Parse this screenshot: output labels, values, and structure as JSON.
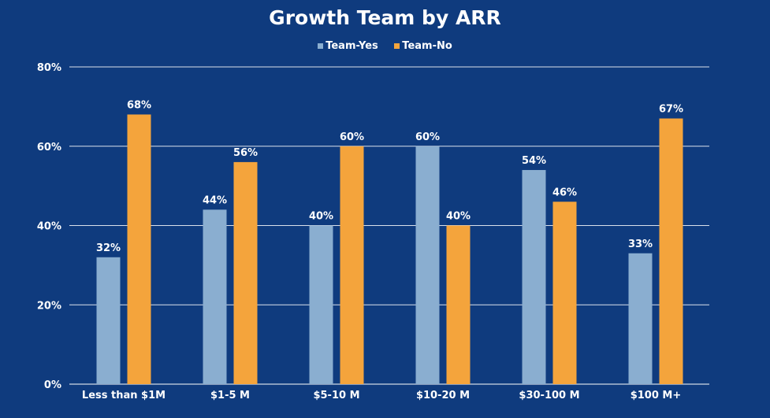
{
  "chart_data": {
    "type": "bar",
    "title": "Growth Team by ARR",
    "categories": [
      "Less than $1M",
      "$1-5 M",
      "$5-10 M",
      "$10-20 M",
      "$30-100 M",
      "$100 M+"
    ],
    "series": [
      {
        "name": "Team-Yes",
        "values": [
          32,
          44,
          40,
          60,
          54,
          33
        ],
        "labels": [
          "32%",
          "44%",
          "40%",
          "60%",
          "54%",
          "33%"
        ],
        "color": "#8aaed0"
      },
      {
        "name": "Team-No",
        "values": [
          68,
          56,
          60,
          40,
          46,
          67
        ],
        "labels": [
          "68%",
          "56%",
          "60%",
          "40%",
          "46%",
          "67%"
        ],
        "color": "#f4a43c"
      }
    ],
    "yticks": [
      "0%",
      "20%",
      "40%",
      "60%",
      "80%"
    ],
    "ylim": [
      0,
      80
    ],
    "grid": true,
    "legend": "top-center",
    "background": "#0f3b7e"
  }
}
